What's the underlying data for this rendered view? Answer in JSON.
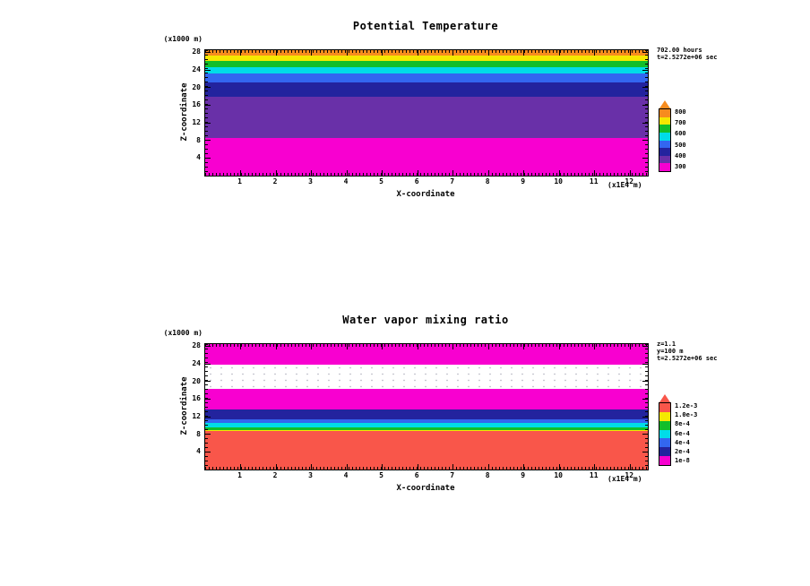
{
  "page": {
    "background": "#ffffff"
  },
  "chart_data": [
    {
      "type": "heatmap",
      "title": "Potential Temperature",
      "xlabel": "X-coordinate",
      "x_unit": "(x1E4 m)",
      "ylabel": "Z-coordinate",
      "y_unit": "(x1000 m)",
      "xlim": [
        0,
        12.5
      ],
      "ylim": [
        0,
        28.5
      ],
      "x_ticks": [
        1,
        2,
        3,
        4,
        5,
        6,
        7,
        8,
        9,
        10,
        11,
        12
      ],
      "y_ticks": [
        4,
        8,
        12,
        16,
        20,
        24,
        28
      ],
      "annotations": [
        "702.00 hours",
        "t=2.5272e+06 sec"
      ],
      "grid": false,
      "legend_position": "right",
      "bands": [
        {
          "z_from": 0,
          "z_to": 8.6,
          "color": "#F800D0",
          "approx_value": "300"
        },
        {
          "z_from": 8.6,
          "z_to": 18.0,
          "color": "#6930A8",
          "approx_value": "400"
        },
        {
          "z_from": 18.0,
          "z_to": 21.2,
          "color": "#23239E",
          "approx_value": "500"
        },
        {
          "z_from": 21.2,
          "z_to": 23.2,
          "color": "#3366F0",
          "approx_value": "600"
        },
        {
          "z_from": 23.2,
          "z_to": 24.6,
          "color": "#00DCE8",
          "approx_value": "650"
        },
        {
          "z_from": 24.6,
          "z_to": 26.0,
          "color": "#12BE2A",
          "approx_value": "700"
        },
        {
          "z_from": 26.0,
          "z_to": 27.2,
          "color": "#F5E800",
          "approx_value": "750"
        },
        {
          "z_from": 27.2,
          "z_to": 28.5,
          "color": "#F78C1E",
          "approx_value": "800"
        }
      ],
      "colorbar": {
        "colors_bottom_to_top": [
          "#F800D0",
          "#6930A8",
          "#23239E",
          "#3366F0",
          "#00DCE8",
          "#12BE2A",
          "#F5E800",
          "#F78C1E"
        ],
        "labels_top_to_bottom": [
          "800",
          "700",
          "600",
          "500",
          "400",
          "300"
        ]
      }
    },
    {
      "type": "heatmap",
      "title": "Water vapor mixing ratio",
      "xlabel": "X-coordinate",
      "x_unit": "(x1E4 m)",
      "ylabel": "Z-coordinate",
      "y_unit": "(x1000 m)",
      "xlim": [
        0,
        12.5
      ],
      "ylim": [
        0,
        28.5
      ],
      "x_ticks": [
        1,
        2,
        3,
        4,
        5,
        6,
        7,
        8,
        9,
        10,
        11,
        12
      ],
      "y_ticks": [
        4,
        8,
        12,
        16,
        20,
        24,
        28
      ],
      "annotations": [
        "z=1.1",
        "y=100 m",
        "t=2.5272e+06 sec"
      ],
      "grid": false,
      "legend_position": "right",
      "bands": [
        {
          "z_from": 0,
          "z_to": 8.8,
          "color": "#F9564A",
          "approx_value": "1.2e-3"
        },
        {
          "z_from": 8.8,
          "z_to": 9.0,
          "color": "#F5E800",
          "approx_value": "1.0e-3"
        },
        {
          "z_from": 9.0,
          "z_to": 9.6,
          "color": "#12BE2A",
          "approx_value": "8e-4"
        },
        {
          "z_from": 9.6,
          "z_to": 10.5,
          "color": "#00DCE8",
          "approx_value": "6e-4"
        },
        {
          "z_from": 10.5,
          "z_to": 11.5,
          "color": "#3366F0",
          "approx_value": "4e-4"
        },
        {
          "z_from": 11.5,
          "z_to": 13.6,
          "color": "#23239E",
          "approx_value": "2e-4"
        },
        {
          "z_from": 13.6,
          "z_to": 18.4,
          "color": "#F800D0",
          "approx_value": "1e-8"
        },
        {
          "z_from": 18.4,
          "z_to": 23.9,
          "color": "#FFFFFF",
          "approx_value": "0",
          "pattern": "dots"
        },
        {
          "z_from": 23.9,
          "z_to": 28.5,
          "color": "#F800D0",
          "approx_value": "1e-8"
        }
      ],
      "colorbar": {
        "colors_bottom_to_top": [
          "#F800D0",
          "#23239E",
          "#3366F0",
          "#00DCE8",
          "#12BE2A",
          "#F5E800",
          "#F9564A"
        ],
        "labels_top_to_bottom": [
          "1.2e-3",
          "1.0e-3",
          "8e-4",
          "6e-4",
          "4e-4",
          "2e-4",
          "1e-8"
        ]
      }
    }
  ]
}
